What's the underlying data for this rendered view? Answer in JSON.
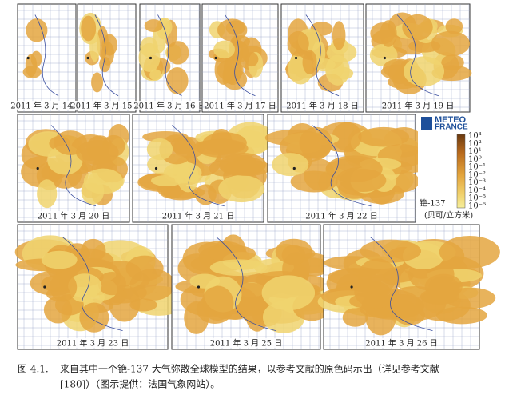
{
  "figure": {
    "panels": [
      {
        "label": "2011 年 3 月 14 日"
      },
      {
        "label": "2011 年 3 月 15 日"
      },
      {
        "label": "2011 年 3 月 16 日"
      },
      {
        "label": "2011 年 3 月 17 日"
      },
      {
        "label": "2011 年 3 月 18 日"
      },
      {
        "label": "2011 年 3 月 19 日"
      },
      {
        "label": "2011 年 3 月 20 日"
      },
      {
        "label": "2011 年 3 月 21 日"
      },
      {
        "label": "2011 年 3 月 22 日"
      },
      {
        "label": "2011 年 3 月 23 日"
      },
      {
        "label": "2011 年 3 月 25 日"
      },
      {
        "label": "2011 年 3 月 26 日"
      }
    ],
    "legend": {
      "logo_line1": "METEO",
      "logo_line2": "FRANCE",
      "scale_labels": [
        "10³",
        "10²",
        "10¹",
        "10⁰",
        "10⁻¹",
        "10⁻²",
        "10⁻³",
        "10⁻⁴",
        "10⁻⁵",
        "10⁻⁶"
      ],
      "substance": "铯-137",
      "unit": "(贝可/立方米)"
    },
    "caption": {
      "number": "图 4.1.",
      "lines": [
        "来自其中一个铯-137 大气弥散全球模型的结果，以参考文献的原色码示出（详见参考文献",
        "[180]）（图示提供：法国气象网站）。"
      ]
    }
  }
}
